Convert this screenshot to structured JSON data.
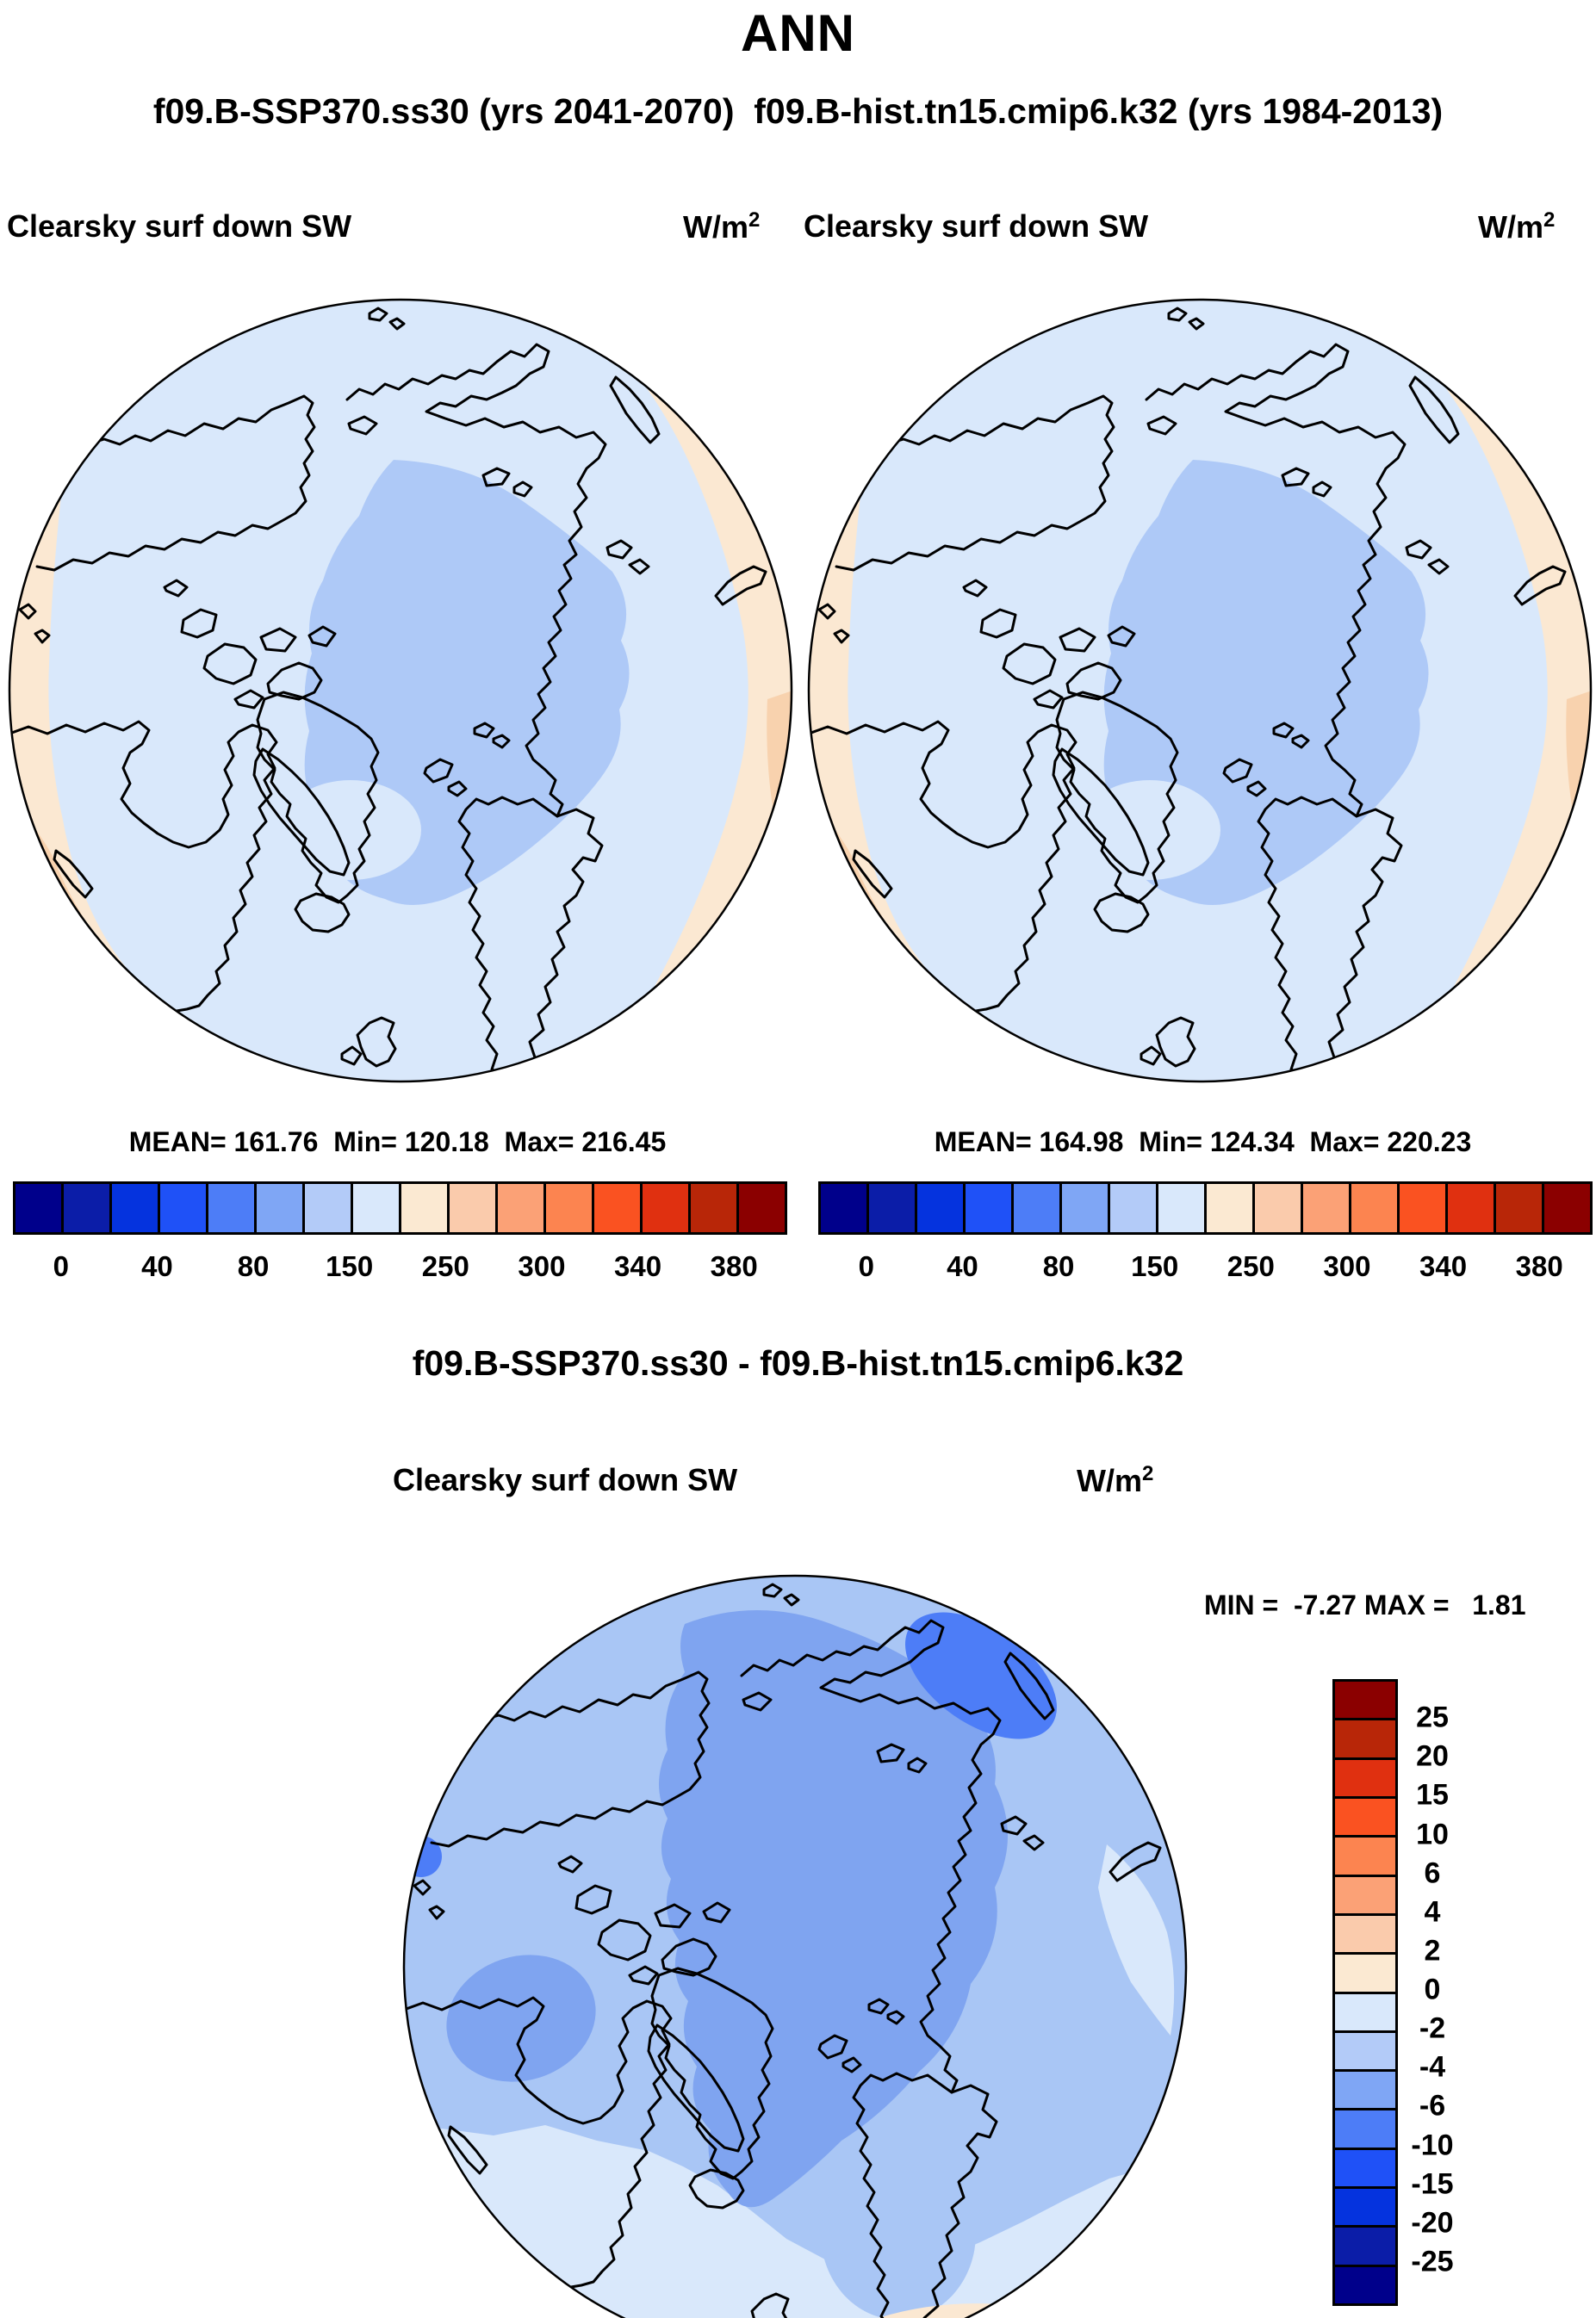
{
  "title": "ANN",
  "subtitle": "f09.B-SSP370.ss30 (yrs 2041-2070)  f09.B-hist.tn15.cmip6.k32 (yrs 1984-2013)",
  "difference_title": "f09.B-SSP370.ss30 - f09.B-hist.tn15.cmip6.k32",
  "panel_left": {
    "variable": "Clearsky surf down SW",
    "units_base": "W/m",
    "units_exp": "2",
    "stats": "MEAN= 161.76  Min= 120.18  Max= 216.45"
  },
  "panel_right": {
    "variable": "Clearsky surf down SW",
    "units_base": "W/m",
    "units_exp": "2",
    "stats": "MEAN= 164.98  Min= 124.34  Max= 220.23"
  },
  "panel_diff": {
    "variable": "Clearsky surf down SW",
    "units_base": "W/m",
    "units_exp": "2",
    "minmax": "MIN =  -7.27 MAX =   1.81"
  },
  "colorbar": {
    "colors": [
      "#00008B",
      "#0B1DA8",
      "#0533DE",
      "#1F51F7",
      "#4D7DF7",
      "#7FA6F5",
      "#B3CBF8",
      "#D9E8FB",
      "#FBE9D2",
      "#FACBAC",
      "#FBA176",
      "#FC8450",
      "#FA5221",
      "#E03010",
      "#B82608",
      "#8B0000"
    ],
    "tick_labels": [
      "0",
      "40",
      "80",
      "150",
      "250",
      "300",
      "340",
      "380"
    ]
  },
  "diff_colorbar": {
    "colors": [
      "#8B0000",
      "#B82608",
      "#E03010",
      "#FA5221",
      "#FC8450",
      "#FBA176",
      "#FACBAC",
      "#FBE9D2",
      "#D9E8FB",
      "#B3CBF8",
      "#7FA6F5",
      "#4D7DF7",
      "#1F51F7",
      "#0533DE",
      "#0B1DA8",
      "#00008B"
    ],
    "tick_labels": [
      "25",
      "20",
      "15",
      "10",
      "6",
      "4",
      "2",
      "0",
      "-2",
      "-4",
      "-6",
      "-10",
      "-15",
      "-20",
      "-25"
    ]
  },
  "map_colors": {
    "base": "#D9E8FB",
    "mid": "#AEC9F7",
    "cream": "#FBE8D2",
    "peach": "#F8D2AE",
    "diffbg": "#A9C6F5",
    "diffmid": "#7FA4F0",
    "diffdeep": "#4D7DF7",
    "outline": "#000000"
  },
  "chart_data": [
    {
      "type": "heatmap",
      "panel": "left",
      "projection": "north polar stereographic",
      "title": "Clearsky surf down SW",
      "units": "W/m2",
      "case": "f09.B-SSP370.ss30",
      "years": "yrs 2041-2070",
      "stats": {
        "mean": 161.76,
        "min": 120.18,
        "max": 216.45
      },
      "colorbar_ticks": [
        0,
        40,
        80,
        150,
        250,
        300,
        340,
        380
      ],
      "legend_position": "bottom",
      "regions": {
        "central_arctic": "120-150 W/m2 band",
        "midlatitude_ring": "150-200 W/m2 band",
        "rim_west_east": "200-250 W/m2 cream band"
      }
    },
    {
      "type": "heatmap",
      "panel": "right",
      "projection": "north polar stereographic",
      "title": "Clearsky surf down SW",
      "units": "W/m2",
      "case": "f09.B-hist.tn15.cmip6.k32",
      "years": "yrs 1984-2013",
      "stats": {
        "mean": 164.98,
        "min": 124.34,
        "max": 220.23
      },
      "colorbar_ticks": [
        0,
        40,
        80,
        150,
        250,
        300,
        340,
        380
      ],
      "legend_position": "bottom",
      "regions": {
        "central_arctic": "120-150 W/m2 band",
        "midlatitude_ring": "150-200 W/m2 band",
        "rim_west_east": "200-250 W/m2 cream band"
      }
    },
    {
      "type": "heatmap",
      "panel": "difference",
      "projection": "north polar stereographic",
      "title": "Clearsky surf down SW",
      "units": "W/m2",
      "case": "f09.B-SSP370.ss30 - f09.B-hist.tn15.cmip6.k32",
      "stats": {
        "min": -7.27,
        "max": 1.81
      },
      "colorbar_ticks": [
        25,
        20,
        15,
        10,
        6,
        4,
        2,
        0,
        -2,
        -4,
        -6,
        -10,
        -15,
        -20,
        -25
      ],
      "legend_position": "right",
      "regions": {
        "central_arctic": "-6 to -4 W/m2",
        "laptev_east_siberian": "-10 to -6 W/m2",
        "hudson_bay": "-6 to -4 W/m2",
        "subpolar_ring": "-4 to -2 W/m2",
        "north_atlantic_scandinavia": "-2 to 0 W/m2",
        "south_rim": "0 to 2 W/m2"
      }
    }
  ]
}
